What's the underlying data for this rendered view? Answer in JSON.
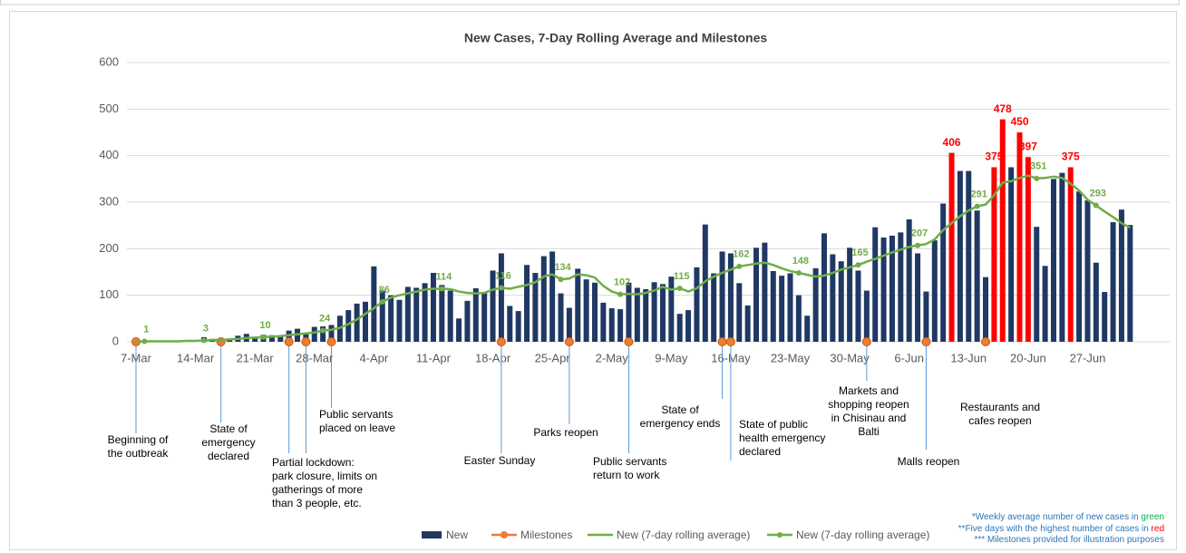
{
  "chart_data": {
    "type": "combo",
    "title": "New Cases, 7-Day Rolling Average and Milestones",
    "categories": [
      "7-Mar",
      null,
      null,
      null,
      null,
      null,
      null,
      "14-Mar",
      null,
      null,
      null,
      null,
      null,
      null,
      "21-Mar",
      null,
      null,
      null,
      null,
      null,
      null,
      "28-Mar",
      null,
      null,
      null,
      null,
      null,
      null,
      "4-Apr",
      null,
      null,
      null,
      null,
      null,
      null,
      "11-Apr",
      null,
      null,
      null,
      null,
      null,
      null,
      "18-Apr",
      null,
      null,
      null,
      null,
      null,
      null,
      "25-Apr",
      null,
      null,
      null,
      null,
      null,
      null,
      "2-May",
      null,
      null,
      null,
      null,
      null,
      null,
      "9-May",
      null,
      null,
      null,
      null,
      null,
      null,
      "16-May",
      null,
      null,
      null,
      null,
      null,
      null,
      "23-May",
      null,
      null,
      null,
      null,
      null,
      null,
      "30-May",
      null,
      null,
      null,
      null,
      null,
      null,
      "6-Jun",
      null,
      null,
      null,
      null,
      null,
      null,
      "13-Jun",
      null,
      null,
      null,
      null,
      null,
      null,
      "20-Jun",
      null,
      null,
      null,
      null,
      null,
      null,
      "27-Jun",
      null,
      null,
      null,
      null,
      null
    ],
    "ylim": [
      0,
      600
    ],
    "yticks": [
      0,
      100,
      200,
      300,
      400,
      500,
      600
    ],
    "grid": true,
    "legend": "bottom",
    "series": [
      {
        "name": "New",
        "type": "bar",
        "color": "#203864",
        "values": [
          1,
          0,
          2,
          0,
          0,
          0,
          0,
          3,
          10,
          2,
          5,
          3,
          13,
          17,
          10,
          15,
          14,
          14,
          24,
          28,
          18,
          32,
          33,
          36,
          56,
          68,
          82,
          86,
          162,
          110,
          100,
          90,
          118,
          116,
          126,
          148,
          122,
          110,
          50,
          88,
          115,
          106,
          153,
          190,
          77,
          66,
          165,
          148,
          184,
          194,
          104,
          73,
          157,
          134,
          127,
          84,
          72,
          70,
          127,
          116,
          113,
          128,
          124,
          140,
          60,
          68,
          160,
          252,
          147,
          194,
          190,
          126,
          78,
          202,
          213,
          152,
          142,
          147,
          100,
          56,
          158,
          233,
          188,
          173,
          202,
          153,
          110,
          246,
          224,
          228,
          235,
          263,
          190,
          108,
          218,
          297,
          406,
          367,
          367,
          282,
          139,
          375,
          478,
          375,
          450,
          397,
          247,
          163,
          350,
          363,
          375,
          323,
          304,
          170,
          107,
          257,
          284,
          251
        ],
        "colors": [
          "#203864",
          "#203864",
          "#203864",
          "#203864",
          "#203864",
          "#203864",
          "#203864",
          "#203864",
          "#203864",
          "#203864",
          "#203864",
          "#203864",
          "#203864",
          "#203864",
          "#203864",
          "#203864",
          "#203864",
          "#203864",
          "#203864",
          "#203864",
          "#203864",
          "#203864",
          "#203864",
          "#203864",
          "#203864",
          "#203864",
          "#203864",
          "#203864",
          "#203864",
          "#203864",
          "#203864",
          "#203864",
          "#203864",
          "#203864",
          "#203864",
          "#203864",
          "#203864",
          "#203864",
          "#203864",
          "#203864",
          "#203864",
          "#203864",
          "#203864",
          "#203864",
          "#203864",
          "#203864",
          "#203864",
          "#203864",
          "#203864",
          "#203864",
          "#203864",
          "#203864",
          "#203864",
          "#203864",
          "#203864",
          "#203864",
          "#203864",
          "#203864",
          "#203864",
          "#203864",
          "#203864",
          "#203864",
          "#203864",
          "#203864",
          "#203864",
          "#203864",
          "#203864",
          "#203864",
          "#203864",
          "#203864",
          "#203864",
          "#203864",
          "#203864",
          "#203864",
          "#203864",
          "#203864",
          "#203864",
          "#203864",
          "#203864",
          "#203864",
          "#203864",
          "#203864",
          "#203864",
          "#203864",
          "#203864",
          "#203864",
          "#203864",
          "#203864",
          "#203864",
          "#203864",
          "#203864",
          "#203864",
          "#203864",
          "#203864",
          "#203864",
          "#203864",
          "#ff0000",
          "#203864",
          "#203864",
          "#203864",
          "#203864",
          "#ff0000",
          "#ff0000",
          "#203864",
          "#ff0000",
          "#ff0000",
          "#203864",
          "#203864",
          "#203864",
          "#203864",
          "#ff0000",
          "#203864",
          "#203864",
          "#203864",
          "#203864",
          "#203864",
          "#203864",
          "#203864"
        ]
      },
      {
        "name": "Milestones",
        "type": "milestones",
        "color": "#ed7d31",
        "values": [
          0,
          null,
          null,
          null,
          null,
          null,
          null,
          null,
          null,
          null,
          0,
          null,
          null,
          null,
          null,
          null,
          null,
          null,
          0,
          null,
          0,
          null,
          null,
          0,
          null,
          null,
          null,
          null,
          null,
          null,
          null,
          null,
          null,
          null,
          null,
          null,
          null,
          null,
          null,
          null,
          null,
          null,
          null,
          0,
          null,
          null,
          null,
          null,
          null,
          null,
          null,
          0,
          null,
          null,
          null,
          null,
          null,
          null,
          0,
          null,
          null,
          null,
          null,
          null,
          null,
          null,
          null,
          null,
          null,
          0,
          0,
          null,
          null,
          null,
          null,
          null,
          null,
          null,
          null,
          null,
          null,
          null,
          null,
          null,
          null,
          null,
          0,
          null,
          null,
          null,
          null,
          null,
          null,
          0,
          null,
          null,
          null,
          null,
          null,
          null,
          0,
          null,
          null,
          null,
          null,
          null,
          null,
          null,
          null,
          null,
          null,
          null,
          null,
          null,
          null,
          null,
          null,
          null
        ],
        "labels": [
          "Beginning of\nthe outbreak",
          null,
          null,
          null,
          null,
          null,
          null,
          null,
          null,
          null,
          "State of\nemergency\ndeclared",
          null,
          null,
          null,
          null,
          null,
          null,
          null,
          "Partial lockdown:\npark closure, limits on\ngatherings of more\nthan 3 people, etc.",
          null,
          null,
          null,
          null,
          "Public servants\nplaced on leave",
          null,
          null,
          null,
          null,
          null,
          null,
          null,
          null,
          null,
          null,
          null,
          null,
          null,
          null,
          null,
          null,
          null,
          null,
          null,
          "Easter Sunday",
          null,
          null,
          null,
          null,
          null,
          null,
          null,
          "Parks reopen",
          null,
          null,
          null,
          null,
          null,
          null,
          "Public servants\nreturn to work",
          null,
          null,
          null,
          null,
          null,
          null,
          null,
          null,
          null,
          null,
          "State of\nemergency ends",
          "State of public\nhealth emergency\ndeclared",
          null,
          null,
          null,
          null,
          null,
          null,
          null,
          null,
          null,
          null,
          null,
          null,
          null,
          null,
          null,
          "Markets and\nshopping reopen\nin Chisinau and\nBalti",
          null,
          null,
          null,
          null,
          null,
          null,
          "Malls reopen",
          null,
          null,
          null,
          null,
          null,
          null,
          "Restaurants and\ncafes reopen",
          null,
          null,
          null,
          null,
          null,
          null,
          null,
          null,
          null,
          null,
          null,
          null,
          null,
          null,
          null,
          null,
          null
        ]
      },
      {
        "name": "New (7-day rolling average)",
        "type": "line",
        "color": "#70ad47",
        "values": [
          0,
          1,
          1,
          1,
          1,
          1,
          2,
          2,
          3,
          4,
          4,
          5,
          6,
          8,
          9,
          10,
          11,
          12,
          14,
          16,
          18,
          20,
          24,
          26,
          30,
          38,
          48,
          60,
          72,
          86,
          95,
          100,
          104,
          108,
          112,
          114,
          114,
          113,
          108,
          105,
          104,
          105,
          112,
          116,
          114,
          118,
          122,
          128,
          140,
          145,
          134,
          136,
          145,
          143,
          138,
          120,
          108,
          102,
          103,
          102,
          105,
          110,
          118,
          112,
          115,
          108,
          115,
          130,
          140,
          148,
          155,
          162,
          165,
          168,
          170,
          165,
          158,
          152,
          148,
          144,
          140,
          142,
          148,
          155,
          160,
          165,
          172,
          178,
          185,
          192,
          198,
          204,
          207,
          210,
          220,
          240,
          255,
          270,
          282,
          291,
          295,
          315,
          342,
          345,
          352,
          357,
          351,
          352,
          355,
          352,
          340,
          325,
          305,
          293,
          280,
          268,
          255,
          245
        ]
      },
      {
        "name": "New (7-day rolling average)",
        "type": "markers",
        "color": "#70ad47",
        "values": [
          null,
          1,
          null,
          null,
          null,
          null,
          null,
          null,
          3,
          null,
          null,
          null,
          null,
          null,
          null,
          10,
          null,
          null,
          null,
          null,
          null,
          null,
          24,
          null,
          null,
          null,
          null,
          null,
          null,
          86,
          null,
          null,
          null,
          null,
          null,
          null,
          114,
          null,
          null,
          null,
          null,
          null,
          null,
          116,
          null,
          null,
          null,
          null,
          null,
          null,
          134,
          null,
          null,
          null,
          null,
          null,
          null,
          102,
          null,
          null,
          null,
          null,
          null,
          null,
          115,
          null,
          null,
          null,
          null,
          null,
          null,
          162,
          null,
          null,
          null,
          null,
          null,
          null,
          148,
          null,
          null,
          null,
          null,
          null,
          null,
          165,
          null,
          null,
          null,
          null,
          null,
          null,
          207,
          null,
          null,
          null,
          null,
          null,
          null,
          291,
          null,
          null,
          null,
          null,
          null,
          null,
          351,
          null,
          null,
          null,
          null,
          null,
          null,
          293,
          null,
          null,
          null,
          null
        ]
      }
    ],
    "footnotes": [
      {
        "text": "*Weekly average number of new cases in ",
        "highlight": "green",
        "highlight_color": "#00b050"
      },
      {
        "text": "**Five days with the highest number of cases in ",
        "highlight": "red",
        "highlight_color": "#ff0000"
      },
      {
        "text": "***  Milestones provided for illustration purposes"
      }
    ]
  }
}
